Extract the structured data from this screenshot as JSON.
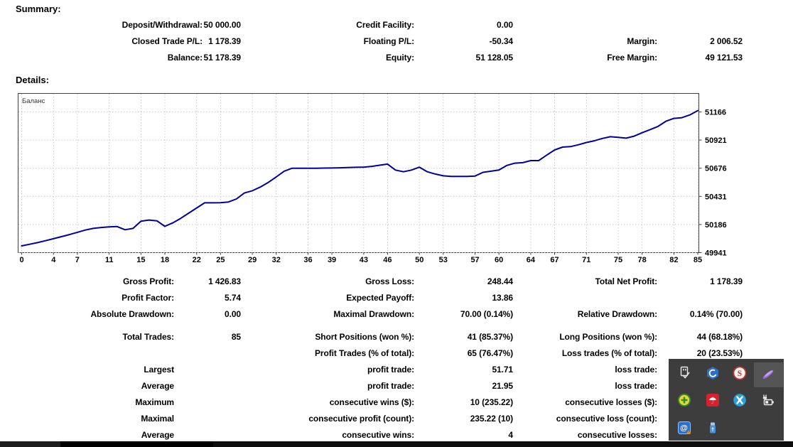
{
  "page": {
    "title_summary": "Summary:",
    "title_details": "Details:"
  },
  "summary": {
    "rows": [
      [
        "Deposit/Withdrawal:",
        "50 000.00",
        "Credit Facility:",
        "0.00",
        "",
        ""
      ],
      [
        "Closed Trade P/L:",
        "1 178.39",
        "Floating P/L:",
        "-50.34",
        "Margin:",
        "2 006.52"
      ],
      [
        "Balance:",
        "51 178.39",
        "Equity:",
        "51 128.05",
        "Free Margin:",
        "49 121.53"
      ]
    ]
  },
  "stats": {
    "rows": [
      [
        "Gross Profit:",
        "1 426.83",
        "Gross Loss:",
        "248.44",
        "Total Net Profit:",
        "1 178.39"
      ],
      [
        "Profit Factor:",
        "5.74",
        "Expected Payoff:",
        "13.86",
        "",
        ""
      ],
      [
        "Absolute Drawdown:",
        "0.00",
        "Maximal Drawdown:",
        "70.00 (0.14%)",
        "Relative Drawdown:",
        "0.14% (70.00)"
      ],
      [
        "Total Trades:",
        "85",
        "Short Positions (won %):",
        "41 (85.37%)",
        "Long Positions (won %):",
        "44 (68.18%)"
      ],
      [
        "",
        "",
        "Profit Trades (% of total):",
        "65 (76.47%)",
        "Loss trades (% of total):",
        "20 (23.53%)"
      ],
      [
        "Largest",
        "",
        "profit trade:",
        "51.71",
        "loss trade:",
        ""
      ],
      [
        "Average",
        "",
        "profit trade:",
        "21.95",
        "loss trade:",
        ""
      ],
      [
        "Maximum",
        "",
        "consecutive wins ($):",
        "10 (235.22)",
        "consecutive losses ($):",
        ""
      ],
      [
        "Maximal",
        "",
        "consecutive profit (count):",
        "235.22 (10)",
        "consecutive loss (count):",
        ""
      ],
      [
        "Average",
        "",
        "consecutive wins:",
        "4",
        "consecutive losses:",
        ""
      ]
    ]
  },
  "chart_data": {
    "type": "line",
    "title": "Баланс",
    "legend_position": "top-left-inside",
    "grid": true,
    "x_ticks": [
      0,
      4,
      7,
      11,
      15,
      18,
      22,
      25,
      29,
      32,
      36,
      39,
      43,
      46,
      50,
      53,
      57,
      60,
      64,
      67,
      71,
      75,
      78,
      82,
      85
    ],
    "y_ticks": [
      49941,
      50186,
      50431,
      50676,
      50921,
      51166
    ],
    "xlim": [
      0,
      85
    ],
    "ylim": [
      49935,
      51330
    ],
    "series": [
      {
        "name": "Баланс",
        "color": "#00009a",
        "values": [
          50000,
          50014,
          50028,
          50045,
          50062,
          50080,
          50098,
          50118,
          50138,
          50152,
          50160,
          50165,
          50168,
          50140,
          50152,
          50215,
          50225,
          50218,
          50170,
          50200,
          50240,
          50285,
          50330,
          50375,
          50375,
          50376,
          50382,
          50408,
          50460,
          50480,
          50512,
          50552,
          50600,
          50650,
          50676,
          50676,
          50676,
          50676,
          50677,
          50678,
          50680,
          50682,
          50684,
          50685,
          50692,
          50702,
          50712,
          50660,
          50645,
          50660,
          50685,
          50645,
          50625,
          50610,
          50605,
          50605,
          50605,
          50608,
          50640,
          50650,
          50660,
          50700,
          50720,
          50724,
          50742,
          50742,
          50790,
          50835,
          50860,
          50864,
          50880,
          50900,
          50915,
          50935,
          50950,
          50945,
          50938,
          50955,
          50985,
          51012,
          51040,
          51085,
          51110,
          51116,
          51140,
          51178
        ]
      }
    ]
  },
  "tray": {
    "icon_names": [
      "safely-remove-hardware-icon",
      "hexagon-app-icon",
      "s-badge-app-icon",
      "feather-pen-icon",
      "green-plus-coin-icon",
      "avira-umbrella-icon",
      "x-circle-app-icon",
      "power-plug-battery-icon",
      "at-spiral-warning-icon",
      "usb-flash-drive-icon"
    ]
  },
  "colors": {
    "chart_line": "#00009a",
    "chart_grid": "#c9c9c9",
    "chart_border": "#3f3f3f",
    "text": "#000000",
    "tray_bg": "#3d3d3d",
    "tray_highlight": "#555555",
    "taskbar": "#0d0d0d",
    "avira_red": "#d6212e",
    "feather_purple": "#9b6ed6"
  }
}
